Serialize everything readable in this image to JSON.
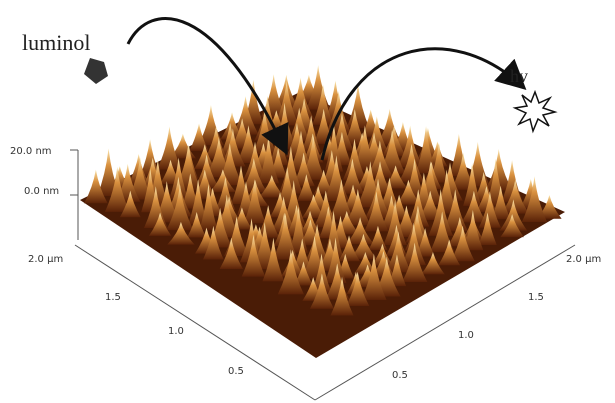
{
  "figure": {
    "labels": {
      "reactant": "luminol",
      "emission": "hv"
    },
    "z_axis": {
      "ticks": [
        "20.0 nm",
        "0.0 nm"
      ]
    },
    "left_axis": {
      "ticks": [
        "2.0 µm",
        "1.5",
        "1.0",
        "0.5"
      ]
    },
    "right_axis": {
      "ticks": [
        "2.0 µm",
        "1.5",
        "1.0",
        "0.5"
      ]
    }
  }
}
